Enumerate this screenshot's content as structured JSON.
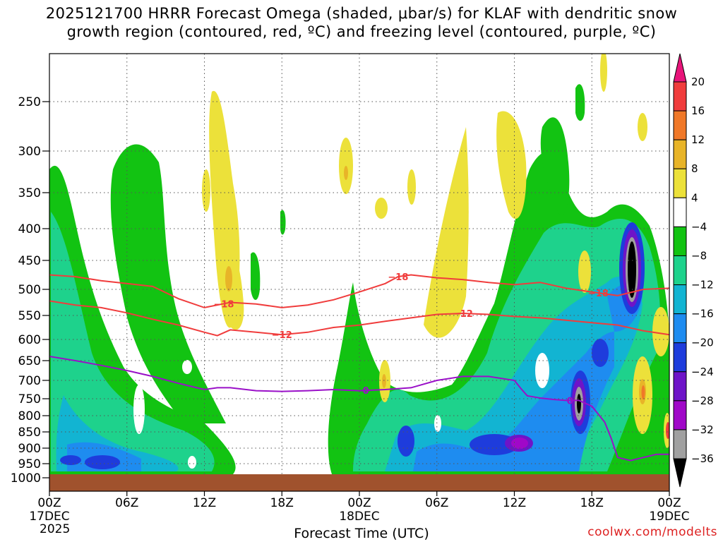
{
  "chart_data": {
    "type": "heatmap",
    "title_line1": "2025121700 HRRR Forecast Omega (shaded, μbar/s) for KLAF with dendritic snow",
    "title_line2": "growth region (contoured, red, ºC) and freezing level (contoured, purple, ºC)",
    "xlabel": "Forecast Time (UTC)",
    "credit": "coolwx.com/modelts",
    "x_ticks": [
      {
        "hour": 0,
        "label": "00Z",
        "sub1": "17DEC",
        "sub2": "2025"
      },
      {
        "hour": 6,
        "label": "06Z",
        "sub1": "",
        "sub2": ""
      },
      {
        "hour": 12,
        "label": "12Z",
        "sub1": "",
        "sub2": ""
      },
      {
        "hour": 18,
        "label": "18Z",
        "sub1": "",
        "sub2": ""
      },
      {
        "hour": 24,
        "label": "00Z",
        "sub1": "18DEC",
        "sub2": ""
      },
      {
        "hour": 30,
        "label": "06Z",
        "sub1": "",
        "sub2": ""
      },
      {
        "hour": 36,
        "label": "12Z",
        "sub1": "",
        "sub2": ""
      },
      {
        "hour": 42,
        "label": "18Z",
        "sub1": "",
        "sub2": ""
      },
      {
        "hour": 48,
        "label": "00Z",
        "sub1": "19DEC",
        "sub2": ""
      }
    ],
    "x_range": [
      0,
      48
    ],
    "y_ticks": [
      250,
      300,
      350,
      400,
      450,
      500,
      550,
      600,
      650,
      700,
      750,
      800,
      850,
      900,
      950,
      1000
    ],
    "y_range_hpa": [
      200,
      1020
    ],
    "colorbar": {
      "labels": [
        "20",
        "16",
        "12",
        "8",
        "4",
        "−4",
        "−8",
        "−12",
        "−16",
        "−20",
        "−24",
        "−28",
        "−32",
        "−36"
      ],
      "colors": [
        "#e8147a",
        "#f03c3c",
        "#f07828",
        "#e8b428",
        "#ece13a",
        "#ffffff",
        "#12c312",
        "#1ed28c",
        "#12b4d2",
        "#1e8cf0",
        "#1e3cdc",
        "#6e14c8",
        "#a008c8",
        "#a0a0a0",
        "#000000"
      ]
    },
    "contours": {
      "dgz_minus18": {
        "label": "−18",
        "color": "#f03c3c",
        "points": [
          [
            0,
            475
          ],
          [
            2,
            478
          ],
          [
            4,
            485
          ],
          [
            6,
            490
          ],
          [
            8,
            495
          ],
          [
            10,
            518
          ],
          [
            12,
            535
          ],
          [
            14,
            525
          ],
          [
            16,
            528
          ],
          [
            18,
            535
          ],
          [
            20,
            530
          ],
          [
            22,
            520
          ],
          [
            24,
            505
          ],
          [
            26,
            490
          ],
          [
            27,
            478
          ],
          [
            28,
            475
          ],
          [
            30,
            480
          ],
          [
            32,
            483
          ],
          [
            34,
            488
          ],
          [
            36,
            492
          ],
          [
            38,
            488
          ],
          [
            40,
            498
          ],
          [
            42,
            505
          ],
          [
            44,
            512
          ],
          [
            46,
            500
          ],
          [
            48,
            498
          ]
        ]
      },
      "dgz_minus12": {
        "label": "−12",
        "color": "#f03c3c",
        "points": [
          [
            0,
            522
          ],
          [
            2,
            530
          ],
          [
            4,
            535
          ],
          [
            6,
            545
          ],
          [
            8,
            558
          ],
          [
            10,
            570
          ],
          [
            12,
            585
          ],
          [
            13,
            592
          ],
          [
            14,
            580
          ],
          [
            16,
            585
          ],
          [
            18,
            590
          ],
          [
            20,
            585
          ],
          [
            22,
            575
          ],
          [
            24,
            570
          ],
          [
            26,
            562
          ],
          [
            28,
            555
          ],
          [
            30,
            548
          ],
          [
            32,
            546
          ],
          [
            34,
            548
          ],
          [
            36,
            552
          ],
          [
            38,
            555
          ],
          [
            40,
            560
          ],
          [
            42,
            565
          ],
          [
            44,
            570
          ],
          [
            46,
            582
          ],
          [
            48,
            590
          ]
        ]
      },
      "freezing_0": {
        "label": "0",
        "color": "#9a10c8",
        "points": [
          [
            0,
            640
          ],
          [
            2,
            650
          ],
          [
            4,
            662
          ],
          [
            6,
            675
          ],
          [
            8,
            690
          ],
          [
            10,
            708
          ],
          [
            12,
            725
          ],
          [
            13,
            720
          ],
          [
            14,
            720
          ],
          [
            16,
            728
          ],
          [
            18,
            730
          ],
          [
            20,
            728
          ],
          [
            22,
            725
          ],
          [
            24,
            728
          ],
          [
            26,
            725
          ],
          [
            28,
            720
          ],
          [
            30,
            700
          ],
          [
            32,
            690
          ],
          [
            34,
            690
          ],
          [
            36,
            700
          ],
          [
            36.5,
            722
          ],
          [
            37,
            742
          ],
          [
            38,
            748
          ],
          [
            39,
            752
          ],
          [
            40,
            755
          ],
          [
            41,
            755
          ],
          [
            42,
            772
          ],
          [
            43,
            820
          ],
          [
            43.5,
            870
          ],
          [
            44,
            930
          ],
          [
            45,
            940
          ],
          [
            46,
            930
          ],
          [
            47,
            920
          ],
          [
            48,
            920
          ]
        ]
      }
    }
  }
}
